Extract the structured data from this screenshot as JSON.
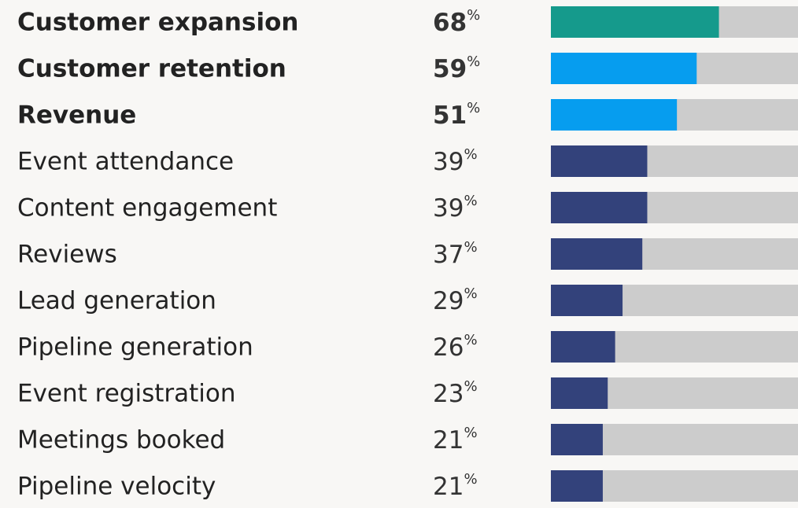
{
  "chart_data": {
    "type": "bar",
    "categories": [
      "Customer expansion",
      "Customer retention",
      "Revenue",
      "Event attendance",
      "Content engagement",
      "Reviews",
      "Lead generation",
      "Pipeline generation",
      "Event registration",
      "Meetings booked",
      "Pipeline velocity"
    ],
    "values": [
      68,
      59,
      51,
      39,
      39,
      37,
      29,
      26,
      23,
      21,
      21
    ],
    "unit": "%",
    "colors": [
      "#159a8c",
      "#069def",
      "#069def",
      "#33427b",
      "#33427b",
      "#33427b",
      "#33427b",
      "#33427b",
      "#33427b",
      "#33427b",
      "#33427b"
    ],
    "bold": [
      true,
      true,
      true,
      false,
      false,
      false,
      false,
      false,
      false,
      false,
      false
    ],
    "track_color": "#cccccc",
    "xlim": [
      0,
      100
    ]
  }
}
